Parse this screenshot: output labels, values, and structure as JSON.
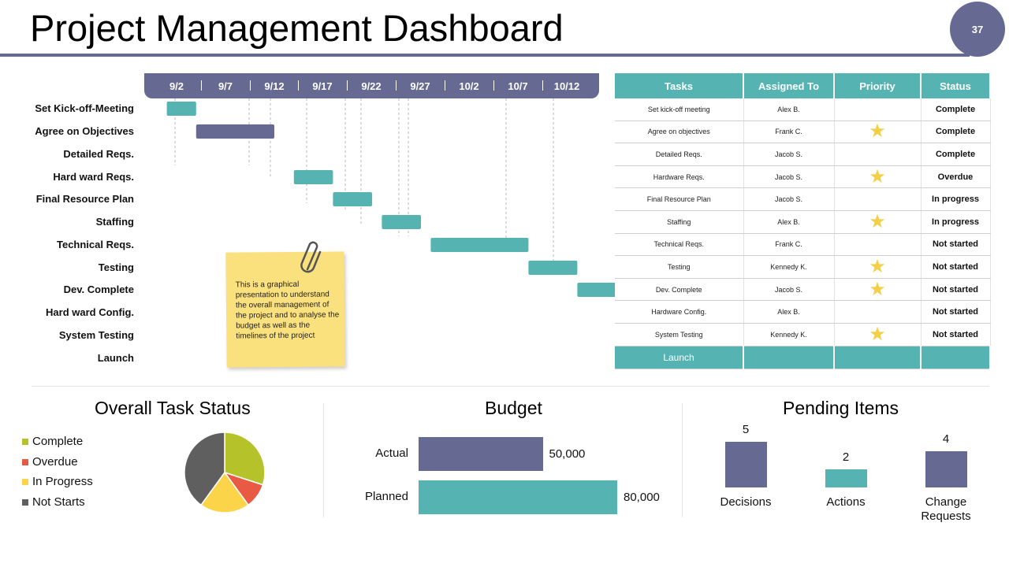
{
  "page": {
    "title": "Project Management Dashboard",
    "number": "37"
  },
  "colors": {
    "purple": "#666a92",
    "teal": "#55b3b1",
    "star": "#f4cf45",
    "note": "#fbe07e"
  },
  "gantt": {
    "dates": [
      "9/2",
      "9/7",
      "9/12",
      "9/17",
      "9/22",
      "9/27",
      "10/2",
      "10/7",
      "10/12"
    ],
    "tasks": [
      {
        "label": "Set Kick-off-Meeting",
        "start": "9/1",
        "end": "9/4",
        "color": "teal"
      },
      {
        "label": "Agree on Objectives",
        "start": "9/4",
        "end": "9/12",
        "color": "purple"
      },
      {
        "label": "Detailed Reqs.",
        "start": null,
        "end": null,
        "color": null
      },
      {
        "label": "Hard ward Reqs.",
        "start": "9/14",
        "end": "9/18",
        "color": "teal"
      },
      {
        "label": "Final Resource Plan",
        "start": "9/18",
        "end": "9/22",
        "color": "teal"
      },
      {
        "label": "Staffing",
        "start": "9/23",
        "end": "9/27",
        "color": "teal"
      },
      {
        "label": "Technical Reqs.",
        "start": "9/28",
        "end": "10/8",
        "color": "teal"
      },
      {
        "label": "Testing",
        "start": "10/8",
        "end": "10/13",
        "color": "teal"
      },
      {
        "label": "Dev. Complete",
        "start": "10/13",
        "end": "10/17",
        "color": "teal"
      },
      {
        "label": "Hard ward Config.",
        "start": null,
        "end": null,
        "color": null
      },
      {
        "label": "System Testing",
        "start": null,
        "end": null,
        "color": null
      },
      {
        "label": "Launch",
        "start": null,
        "end": null,
        "color": null
      }
    ]
  },
  "note": {
    "text": "This is a graphical presentation to understand the overall management of the project and to analyse the budget as well as the timelines of the project"
  },
  "table": {
    "headers": [
      "Tasks",
      "Assigned To",
      "Priority",
      "Status"
    ],
    "rows": [
      {
        "task": "Set kick-off meeting",
        "assigned": "Alex B.",
        "priority": false,
        "status": "Complete"
      },
      {
        "task": "Agree on objectives",
        "assigned": "Frank C.",
        "priority": true,
        "status": "Complete"
      },
      {
        "task": "Detailed Reqs.",
        "assigned": "Jacob S.",
        "priority": false,
        "status": "Complete"
      },
      {
        "task": "Hardware Reqs.",
        "assigned": "Jacob S.",
        "priority": true,
        "status": "Overdue"
      },
      {
        "task": "Final Resource Plan",
        "assigned": "Jacob S.",
        "priority": false,
        "status": "In progress"
      },
      {
        "task": "Staffing",
        "assigned": "Alex B.",
        "priority": true,
        "status": "In progress"
      },
      {
        "task": "Technical Reqs.",
        "assigned": "Frank C.",
        "priority": false,
        "status": "Not started"
      },
      {
        "task": "Testing",
        "assigned": "Kennedy K.",
        "priority": true,
        "status": "Not started"
      },
      {
        "task": "Dev. Complete",
        "assigned": "Jacob S.",
        "priority": true,
        "status": "Not started"
      },
      {
        "task": "Hardware Config.",
        "assigned": "Alex B.",
        "priority": false,
        "status": "Not started"
      },
      {
        "task": "System Testing",
        "assigned": "Kennedy K.",
        "priority": true,
        "status": "Not started"
      }
    ],
    "footer": "Launch"
  },
  "chart_data": [
    {
      "type": "pie",
      "title": "Overall Task Status",
      "legend_position": "left",
      "slices": [
        {
          "label": "Complete",
          "value": 30,
          "color": "#b5c22a"
        },
        {
          "label": "Overdue",
          "value": 10,
          "color": "#e85a44"
        },
        {
          "label": "In Progress",
          "value": 20,
          "color": "#fbd44a"
        },
        {
          "label": "Not Starts",
          "value": 40,
          "color": "#5f5f5f"
        }
      ]
    },
    {
      "type": "bar",
      "orientation": "horizontal",
      "title": "Budget",
      "categories": [
        "Actual",
        "Planned"
      ],
      "values": [
        50000,
        80000
      ],
      "value_labels": [
        "50,000",
        "80,000"
      ],
      "colors": [
        "#666a92",
        "#55b3b1"
      ]
    },
    {
      "type": "bar",
      "title": "Pending Items",
      "categories": [
        "Decisions",
        "Actions",
        "Change Requests"
      ],
      "values": [
        5,
        2,
        4
      ],
      "value_labels": [
        "5",
        "2",
        "4"
      ],
      "colors": [
        "#666a92",
        "#55b3b1",
        "#666a92"
      ]
    }
  ]
}
